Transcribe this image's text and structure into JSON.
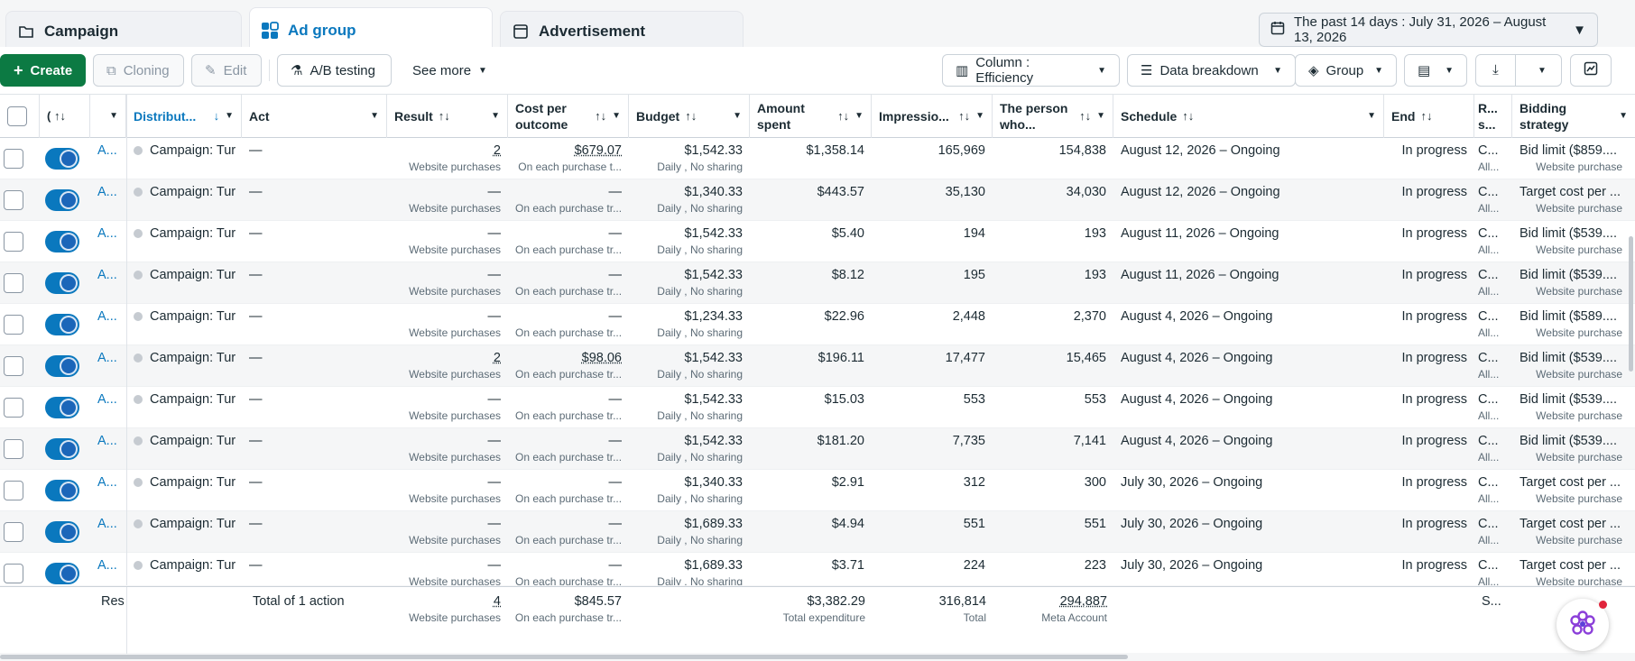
{
  "tabs": [
    {
      "label": "Campaign",
      "icon": "folder-icon"
    },
    {
      "label": "Ad group",
      "icon": "grid-icon",
      "active": true
    },
    {
      "label": "Advertisement",
      "icon": "ad-icon"
    }
  ],
  "date_range": "The past 14 days : July 31, 2026 – August 13, 2026",
  "toolbar": {
    "create": "Create",
    "cloning": "Cloning",
    "edit": "Edit",
    "ab_testing": "A/B testing",
    "see_more": "See more",
    "column": "Column : Efficiency",
    "data_breakdown": "Data breakdown",
    "group": "Group"
  },
  "columns": {
    "distribution": "Distribut...",
    "act": "Act",
    "result": "Result",
    "cost_per_outcome": "Cost per outcome",
    "budget": "Budget",
    "amount_spent": "Amount spent",
    "impressions": "Impressio...",
    "person_who": "The person who...",
    "schedule": "Schedule",
    "end": "End",
    "r_s": "R... s...",
    "bidding": "Bidding strategy"
  },
  "rows": [
    {
      "name": "A...",
      "campaign": "Campaign: Tur",
      "act": "—",
      "result": "2",
      "result_sub": "Website purchases",
      "cost": "$679.07",
      "cost_sub": "On each purchase t...",
      "budget": "$1,542.33",
      "budget_sub": "Daily , No sharing",
      "spent": "$1,358.14",
      "impr": "165,969",
      "person": "154,838",
      "schedule": "August 12, 2026 – Ongoing",
      "end": "In progress",
      "rs": "C...",
      "rs_sub": "All...",
      "bid": "Bid limit ($859....",
      "bid_sub": "Website purchase"
    },
    {
      "name": "A...",
      "campaign": "Campaign: Tur",
      "act": "—",
      "result": "—",
      "result_sub": "Website purchases",
      "cost": "—",
      "cost_sub": "On each purchase tr...",
      "budget": "$1,340.33",
      "budget_sub": "Daily , No sharing",
      "spent": "$443.57",
      "impr": "35,130",
      "person": "34,030",
      "schedule": "August 12, 2026 – Ongoing",
      "end": "In progress",
      "rs": "C...",
      "rs_sub": "All...",
      "bid": "Target cost per ...",
      "bid_sub": "Website purchase"
    },
    {
      "name": "A...",
      "campaign": "Campaign: Tur",
      "act": "—",
      "result": "—",
      "result_sub": "Website purchases",
      "cost": "—",
      "cost_sub": "On each purchase tr...",
      "budget": "$1,542.33",
      "budget_sub": "Daily , No sharing",
      "spent": "$5.40",
      "impr": "194",
      "person": "193",
      "schedule": "August 11, 2026 – Ongoing",
      "end": "In progress",
      "rs": "C...",
      "rs_sub": "All...",
      "bid": "Bid limit ($539....",
      "bid_sub": "Website purchase"
    },
    {
      "name": "A...",
      "campaign": "Campaign: Tur",
      "act": "—",
      "result": "—",
      "result_sub": "Website purchases",
      "cost": "—",
      "cost_sub": "On each purchase tr...",
      "budget": "$1,542.33",
      "budget_sub": "Daily , No sharing",
      "spent": "$8.12",
      "impr": "195",
      "person": "193",
      "schedule": "August 11, 2026 – Ongoing",
      "end": "In progress",
      "rs": "C...",
      "rs_sub": "All...",
      "bid": "Bid limit ($539....",
      "bid_sub": "Website purchase"
    },
    {
      "name": "A...",
      "campaign": "Campaign: Tur",
      "act": "—",
      "result": "—",
      "result_sub": "Website purchases",
      "cost": "—",
      "cost_sub": "On each purchase tr...",
      "budget": "$1,234.33",
      "budget_sub": "Daily , No sharing",
      "spent": "$22.96",
      "impr": "2,448",
      "person": "2,370",
      "schedule": "August 4, 2026 – Ongoing",
      "end": "In progress",
      "rs": "C...",
      "rs_sub": "All...",
      "bid": "Bid limit ($589....",
      "bid_sub": "Website purchase"
    },
    {
      "name": "A...",
      "campaign": "Campaign: Tur",
      "act": "—",
      "result": "2",
      "result_sub": "Website purchases",
      "cost": "$98.06",
      "cost_sub": "On each purchase tr...",
      "budget": "$1,542.33",
      "budget_sub": "Daily , No sharing",
      "spent": "$196.11",
      "impr": "17,477",
      "person": "15,465",
      "schedule": "August 4, 2026 – Ongoing",
      "end": "In progress",
      "rs": "C...",
      "rs_sub": "All...",
      "bid": "Bid limit ($539....",
      "bid_sub": "Website purchase"
    },
    {
      "name": "A...",
      "campaign": "Campaign: Tur",
      "act": "—",
      "result": "—",
      "result_sub": "Website purchases",
      "cost": "—",
      "cost_sub": "On each purchase tr...",
      "budget": "$1,542.33",
      "budget_sub": "Daily , No sharing",
      "spent": "$15.03",
      "impr": "553",
      "person": "553",
      "schedule": "August 4, 2026 – Ongoing",
      "end": "In progress",
      "rs": "C...",
      "rs_sub": "All...",
      "bid": "Bid limit ($539....",
      "bid_sub": "Website purchase"
    },
    {
      "name": "A...",
      "campaign": "Campaign: Tur",
      "act": "—",
      "result": "—",
      "result_sub": "Website purchases",
      "cost": "—",
      "cost_sub": "On each purchase tr...",
      "budget": "$1,542.33",
      "budget_sub": "Daily , No sharing",
      "spent": "$181.20",
      "impr": "7,735",
      "person": "7,141",
      "schedule": "August 4, 2026 – Ongoing",
      "end": "In progress",
      "rs": "C...",
      "rs_sub": "All...",
      "bid": "Bid limit ($539....",
      "bid_sub": "Website purchase"
    },
    {
      "name": "A...",
      "campaign": "Campaign: Tur",
      "act": "—",
      "result": "—",
      "result_sub": "Website purchases",
      "cost": "—",
      "cost_sub": "On each purchase tr...",
      "budget": "$1,340.33",
      "budget_sub": "Daily , No sharing",
      "spent": "$2.91",
      "impr": "312",
      "person": "300",
      "schedule": "July 30, 2026 – Ongoing",
      "end": "In progress",
      "rs": "C...",
      "rs_sub": "All...",
      "bid": "Target cost per ...",
      "bid_sub": "Website purchase"
    },
    {
      "name": "A...",
      "campaign": "Campaign: Tur",
      "act": "—",
      "result": "—",
      "result_sub": "Website purchases",
      "cost": "—",
      "cost_sub": "On each purchase tr...",
      "budget": "$1,689.33",
      "budget_sub": "Daily , No sharing",
      "spent": "$4.94",
      "impr": "551",
      "person": "551",
      "schedule": "July 30, 2026 – Ongoing",
      "end": "In progress",
      "rs": "C...",
      "rs_sub": "All...",
      "bid": "Target cost per ...",
      "bid_sub": "Website purchase"
    },
    {
      "name": "A...",
      "campaign": "Campaign: Tur",
      "act": "—",
      "result": "—",
      "result_sub": "Website purchases",
      "cost": "—",
      "cost_sub": "On each purchase tr...",
      "budget": "$1,689.33",
      "budget_sub": "Daily , No sharing",
      "spent": "$3.71",
      "impr": "224",
      "person": "223",
      "schedule": "July 30, 2026 – Ongoing",
      "end": "In progress",
      "rs": "C...",
      "rs_sub": "All...",
      "bid": "Target cost per ...",
      "bid_sub": "Website purchase"
    }
  ],
  "totals": {
    "res": "Res",
    "label": "Total of 1 action",
    "result": "4",
    "result_sub": "Website purchases",
    "cost": "$845.57",
    "cost_sub": "On each purchase tr...",
    "spent": "$3,382.29",
    "spent_sub": "Total expenditure",
    "impr": "316,814",
    "impr_sub": "Total",
    "person": "294,887",
    "person_sub": "Meta Account",
    "rs": "S..."
  },
  "colors": {
    "accent": "#0a78be",
    "create": "#0c7a43"
  }
}
